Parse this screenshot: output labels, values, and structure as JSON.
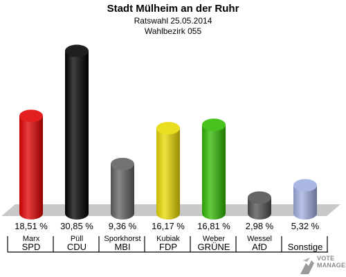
{
  "header": {
    "title": "Stadt Mülheim an der Ruhr",
    "subtitle": "Ratswahl 25.05.2014",
    "district": "Wahlbezirk 055"
  },
  "chart_data": {
    "type": "bar",
    "title": "Stadt Mülheim an der Ruhr",
    "categories": [
      "SPD",
      "CDU",
      "MBI",
      "FDP",
      "GRÜNE",
      "AfD",
      "Sonstige"
    ],
    "candidates": [
      "Marx",
      "Püll",
      "Sporkhorst",
      "Kubiak",
      "Weber",
      "Wessel",
      ""
    ],
    "values": [
      18.51,
      30.85,
      9.36,
      16.17,
      16.81,
      2.98,
      5.32
    ],
    "value_labels": [
      "18,51 %",
      "30,85 %",
      "9,36 %",
      "16,17 %",
      "16,81 %",
      "2,98 %",
      "5,32 %"
    ],
    "colors": [
      "#e00000",
      "#000000",
      "#606060",
      "#e8d800",
      "#30b800",
      "#505050",
      "#a0aee0"
    ],
    "ylim": [
      0,
      32
    ]
  },
  "watermark": {
    "line1": "VOTE",
    "line2": "MANAGER"
  }
}
